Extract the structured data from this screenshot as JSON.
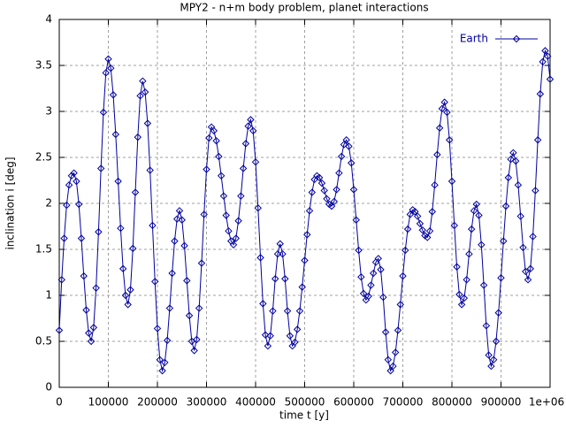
{
  "chart_data": {
    "type": "line",
    "title": "MPY2 - n+m body problem, planet interactions",
    "xlabel": "time t [y]",
    "ylabel": "inclination i [deg]",
    "x": [
      0,
      5000,
      10000,
      15000,
      20000,
      25000,
      30000,
      35000,
      40000,
      45000,
      50000,
      55000,
      60000,
      65000,
      70000,
      75000,
      80000,
      85000,
      90000,
      95000,
      100000,
      105000,
      110000,
      115000,
      120000,
      125000,
      130000,
      135000,
      140000,
      145000,
      150000,
      155000,
      160000,
      165000,
      170000,
      175000,
      180000,
      185000,
      190000,
      195000,
      200000,
      205000,
      210000,
      215000,
      220000,
      225000,
      230000,
      235000,
      240000,
      245000,
      250000,
      255000,
      260000,
      265000,
      270000,
      275000,
      280000,
      285000,
      290000,
      295000,
      300000,
      305000,
      310000,
      315000,
      320000,
      325000,
      330000,
      335000,
      340000,
      345000,
      350000,
      355000,
      360000,
      365000,
      370000,
      375000,
      380000,
      385000,
      390000,
      395000,
      400000,
      405000,
      410000,
      415000,
      420000,
      425000,
      430000,
      435000,
      440000,
      445000,
      450000,
      455000,
      460000,
      465000,
      470000,
      475000,
      480000,
      485000,
      490000,
      495000,
      500000,
      505000,
      510000,
      515000,
      520000,
      525000,
      530000,
      535000,
      540000,
      545000,
      550000,
      555000,
      560000,
      565000,
      570000,
      575000,
      580000,
      585000,
      590000,
      595000,
      600000,
      605000,
      610000,
      615000,
      620000,
      625000,
      630000,
      635000,
      640000,
      645000,
      650000,
      655000,
      660000,
      665000,
      670000,
      675000,
      680000,
      685000,
      690000,
      695000,
      700000,
      705000,
      710000,
      715000,
      720000,
      725000,
      730000,
      735000,
      740000,
      745000,
      750000,
      755000,
      760000,
      765000,
      770000,
      775000,
      780000,
      785000,
      790000,
      795000,
      800000,
      805000,
      810000,
      815000,
      820000,
      825000,
      830000,
      835000,
      840000,
      845000,
      850000,
      855000,
      860000,
      865000,
      870000,
      875000,
      880000,
      885000,
      890000,
      895000,
      900000,
      905000,
      910000,
      915000,
      920000,
      925000,
      930000,
      935000,
      940000,
      945000,
      950000,
      955000,
      960000,
      965000,
      970000,
      975000,
      980000,
      985000,
      990000,
      995000,
      1000000
    ],
    "series": [
      {
        "name": "Earth",
        "color": "#0000a0",
        "values": [
          0.62,
          1.17,
          1.62,
          1.98,
          2.2,
          2.3,
          2.33,
          2.24,
          1.99,
          1.62,
          1.21,
          0.84,
          0.59,
          0.5,
          0.65,
          1.08,
          1.69,
          2.38,
          2.99,
          3.42,
          3.57,
          3.47,
          3.18,
          2.75,
          2.24,
          1.73,
          1.29,
          1.0,
          0.9,
          1.06,
          1.51,
          2.12,
          2.72,
          3.17,
          3.33,
          3.21,
          2.87,
          2.36,
          1.76,
          1.15,
          0.64,
          0.3,
          0.18,
          0.27,
          0.51,
          0.86,
          1.24,
          1.59,
          1.83,
          1.92,
          1.82,
          1.54,
          1.16,
          0.78,
          0.5,
          0.4,
          0.52,
          0.86,
          1.35,
          1.88,
          2.37,
          2.71,
          2.83,
          2.79,
          2.68,
          2.51,
          2.3,
          2.08,
          1.87,
          1.7,
          1.59,
          1.55,
          1.62,
          1.81,
          2.08,
          2.38,
          2.65,
          2.84,
          2.91,
          2.79,
          2.45,
          1.95,
          1.41,
          0.91,
          0.57,
          0.45,
          0.56,
          0.83,
          1.18,
          1.45,
          1.56,
          1.45,
          1.18,
          0.83,
          0.56,
          0.45,
          0.49,
          0.63,
          0.83,
          1.09,
          1.38,
          1.66,
          1.92,
          2.12,
          2.26,
          2.3,
          2.28,
          2.22,
          2.14,
          2.05,
          1.99,
          1.97,
          2.02,
          2.15,
          2.33,
          2.51,
          2.64,
          2.69,
          2.62,
          2.44,
          2.15,
          1.82,
          1.49,
          1.2,
          1.02,
          0.95,
          0.99,
          1.11,
          1.24,
          1.36,
          1.4,
          1.28,
          0.98,
          0.6,
          0.3,
          0.18,
          0.23,
          0.38,
          0.62,
          0.9,
          1.21,
          1.49,
          1.72,
          1.88,
          1.93,
          1.91,
          1.86,
          1.78,
          1.71,
          1.65,
          1.63,
          1.7,
          1.91,
          2.2,
          2.53,
          2.82,
          3.03,
          3.1,
          2.99,
          2.69,
          2.24,
          1.76,
          1.31,
          1.01,
          0.9,
          0.97,
          1.17,
          1.45,
          1.72,
          1.92,
          1.99,
          1.87,
          1.55,
          1.11,
          0.67,
          0.35,
          0.23,
          0.3,
          0.5,
          0.81,
          1.19,
          1.59,
          1.97,
          2.28,
          2.48,
          2.55,
          2.46,
          2.2,
          1.86,
          1.52,
          1.26,
          1.17,
          1.29,
          1.64,
          2.14,
          2.69,
          3.19,
          3.54,
          3.66,
          3.6,
          3.35
        ]
      }
    ],
    "xlim": [
      0,
      1000000
    ],
    "xticks": [
      0,
      100000,
      200000,
      300000,
      400000,
      500000,
      600000,
      700000,
      800000,
      900000,
      {
        "value": 1000000,
        "label": "1e+06"
      }
    ],
    "ylim": [
      0,
      4
    ],
    "yticks": [
      0,
      0.5,
      1,
      1.5,
      2,
      2.5,
      3,
      3.5,
      4
    ],
    "grid": true,
    "legend": "upper right"
  }
}
